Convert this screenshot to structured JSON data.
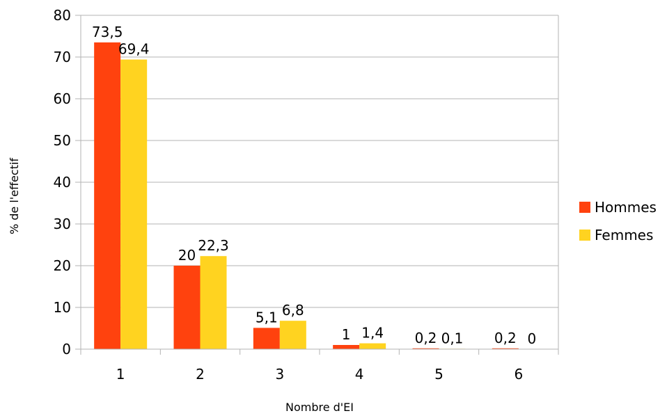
{
  "chart_data": {
    "type": "bar",
    "title": "",
    "xlabel": "Nombre d'EI",
    "ylabel": "% de l'effectif",
    "ylim": [
      0,
      80
    ],
    "yticks": [
      0,
      10,
      20,
      30,
      40,
      50,
      60,
      70,
      80
    ],
    "grid": true,
    "legend_position": "right",
    "categories": [
      "1",
      "2",
      "3",
      "4",
      "5",
      "6"
    ],
    "series": [
      {
        "name": "Hommes",
        "color": "#ff420e",
        "values": [
          73.5,
          20,
          5.1,
          1,
          0.2,
          0.2
        ],
        "labels": [
          "73,5",
          "20",
          "5,1",
          "1",
          "0,2",
          "0,2"
        ]
      },
      {
        "name": "Femmes",
        "color": "#ffd320",
        "values": [
          69.4,
          22.3,
          6.8,
          1.4,
          0.1,
          0
        ],
        "labels": [
          "69,4",
          "22,3",
          "6,8",
          "1,4",
          "0,1",
          "0"
        ]
      }
    ]
  }
}
